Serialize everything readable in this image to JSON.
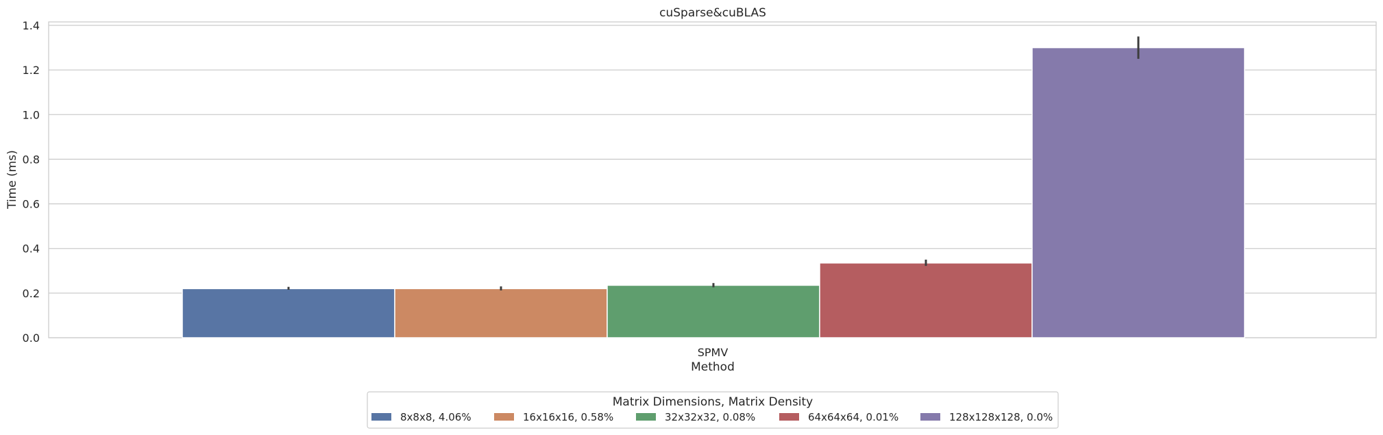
{
  "chart_data": {
    "type": "bar",
    "title": "cuSparse&cuBLAS",
    "xlabel": "Method",
    "ylabel": "Time (ms)",
    "categories": [
      "SPMV"
    ],
    "ylim": [
      0,
      1.4
    ],
    "yticks": [
      "0.0",
      "0.2",
      "0.4",
      "0.6",
      "0.8",
      "1.0",
      "1.2",
      "1.4"
    ],
    "grid": true,
    "legend_title": "Matrix Dimensions, Matrix Density",
    "legend_position": "bottom-center",
    "series": [
      {
        "name": "8x8x8, 4.06%",
        "values": [
          0.22
        ],
        "error": [
          0.215,
          0.228
        ],
        "color": "#5875a4"
      },
      {
        "name": "16x16x16, 0.58%",
        "values": [
          0.22
        ],
        "error": [
          0.212,
          0.23
        ],
        "color": "#cc8963"
      },
      {
        "name": "32x32x32, 0.08%",
        "values": [
          0.235
        ],
        "error": [
          0.226,
          0.245
        ],
        "color": "#5f9e6e"
      },
      {
        "name": "64x64x64, 0.01%",
        "values": [
          0.335
        ],
        "error": [
          0.322,
          0.35
        ],
        "color": "#b55d60"
      },
      {
        "name": "128x128x128, 0.0%",
        "values": [
          1.3
        ],
        "error": [
          1.25,
          1.35
        ],
        "color": "#857aab"
      }
    ]
  }
}
